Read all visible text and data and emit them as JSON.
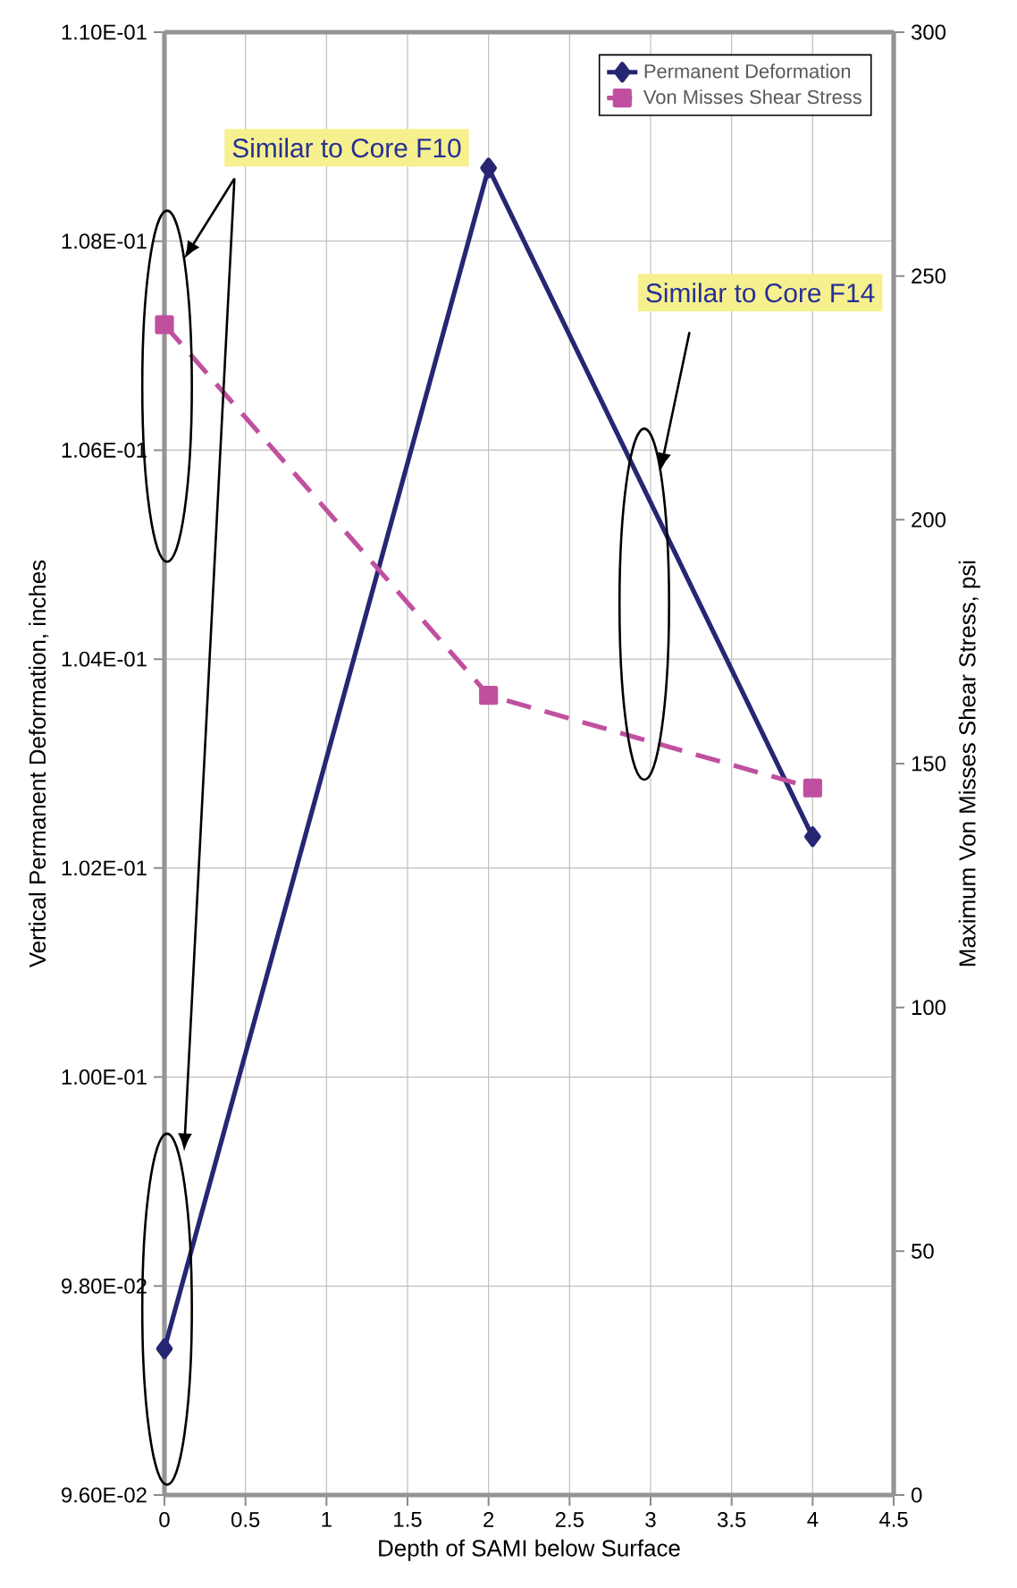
{
  "chart_data": {
    "type": "line",
    "xlabel": "Depth of SAMI below Surface",
    "ylabel": "Vertical Permanent Deformation, inches",
    "y2label": "Maximum Von Misses Shear Stress, psi",
    "x": [
      0,
      2,
      4
    ],
    "series": [
      {
        "name": "Permanent Deformation",
        "color": "#262673",
        "values": [
          0.0974,
          0.1087,
          0.1023
        ],
        "marker": "diamond",
        "line_style": "solid"
      },
      {
        "name": "Von Misses Shear Stress",
        "color": "#c0509f",
        "values": [
          240,
          164,
          145
        ],
        "axis": "y2",
        "marker": "square",
        "line_style": "dashed"
      }
    ],
    "xlim": [
      0,
      4.5
    ],
    "xticks": [
      0,
      0.5,
      1,
      1.5,
      2,
      2.5,
      3,
      3.5,
      4,
      4.5
    ],
    "ylim": [
      0.096,
      0.11
    ],
    "yticks": [
      {
        "value": 0.096,
        "label": "9.60E-02"
      },
      {
        "value": 0.098,
        "label": "9.80E-02"
      },
      {
        "value": 0.1,
        "label": "1.00E-01"
      },
      {
        "value": 0.102,
        "label": "1.02E-01"
      },
      {
        "value": 0.104,
        "label": "1.04E-01"
      },
      {
        "value": 0.106,
        "label": "1.06E-01"
      },
      {
        "value": 0.108,
        "label": "1.08E-01"
      },
      {
        "value": 0.11,
        "label": "1.10E-01"
      }
    ],
    "y2lim": [
      0,
      300
    ],
    "y2ticks": [
      0,
      50,
      100,
      150,
      200,
      250,
      300
    ],
    "grid": true,
    "legend": "top right",
    "annotations": [
      "Similar to Core F10",
      "Similar to Core F14"
    ]
  }
}
